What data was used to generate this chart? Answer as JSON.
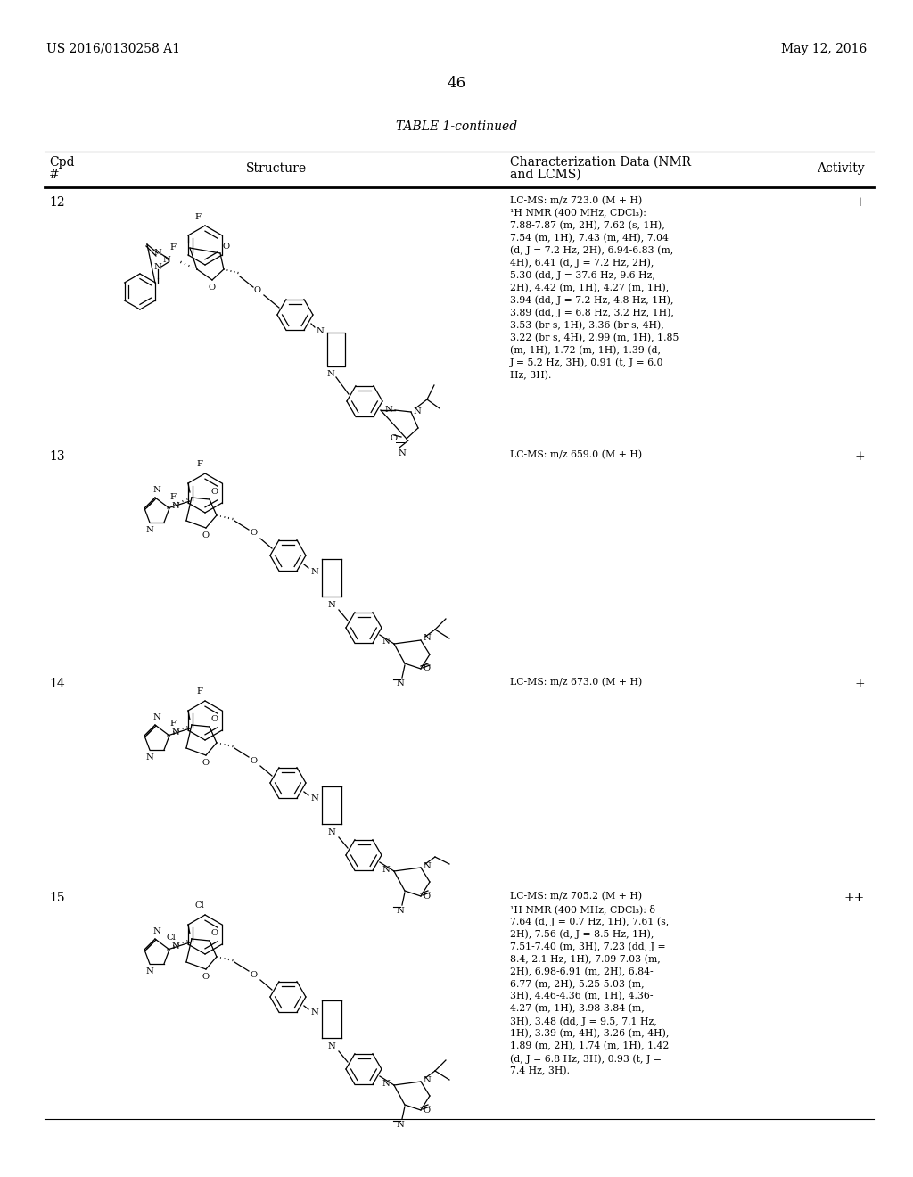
{
  "background_color": "#ffffff",
  "page_width": 10.24,
  "page_height": 13.2,
  "header_left": "US 2016/0130258 A1",
  "header_right": "May 12, 2016",
  "page_number": "46",
  "table_title": "TABLE 1-continued",
  "rows": [
    {
      "cpd": "12",
      "nmr": "LC-MS: m/z 723.0 (M + H)\n¹H NMR (400 MHz, CDCl₃):\n7.88-7.87 (m, 2H), 7.62 (s, 1H),\n7.54 (m, 1H), 7.43 (m, 4H), 7.04\n(d, J = 7.2 Hz, 2H), 6.94-6.83 (m,\n4H), 6.41 (d, J = 7.2 Hz, 2H),\n5.30 (dd, J = 37.6 Hz, 9.6 Hz,\n2H), 4.42 (m, 1H), 4.27 (m, 1H),\n3.94 (dd, J = 7.2 Hz, 4.8 Hz, 1H),\n3.89 (dd, J = 6.8 Hz, 3.2 Hz, 1H),\n3.53 (br s, 1H), 3.36 (br s, 4H),\n3.22 (br s, 4H), 2.99 (m, 1H), 1.85\n(m, 1H), 1.72 (m, 1H), 1.39 (d,\nJ = 5.2 Hz, 3H), 0.91 (t, J = 6.0\nHz, 3H).",
      "activity": "+"
    },
    {
      "cpd": "13",
      "nmr": "LC-MS: m/z 659.0 (M + H)",
      "activity": "+"
    },
    {
      "cpd": "14",
      "nmr": "LC-MS: m/z 673.0 (M + H)",
      "activity": "+"
    },
    {
      "cpd": "15",
      "nmr": "LC-MS: m/z 705.2 (M + H)\n¹H NMR (400 MHz, CDCl₃): δ\n7.64 (d, J = 0.7 Hz, 1H), 7.61 (s,\n2H), 7.56 (d, J = 8.5 Hz, 1H),\n7.51-7.40 (m, 3H), 7.23 (dd, J =\n8.4, 2.1 Hz, 1H), 7.09-7.03 (m,\n2H), 6.98-6.91 (m, 2H), 6.84-\n6.77 (m, 2H), 5.25-5.03 (m,\n3H), 4.46-4.36 (m, 1H), 4.36-\n4.27 (m, 1H), 3.98-3.84 (m,\n3H), 3.48 (dd, J = 9.5, 7.1 Hz,\n1H), 3.39 (m, 4H), 3.26 (m, 4H),\n1.89 (m, 2H), 1.74 (m, 1H), 1.42\n(d, J = 6.8 Hz, 3H), 0.93 (t, J =\n7.4 Hz, 3H).",
      "activity": "++"
    }
  ]
}
